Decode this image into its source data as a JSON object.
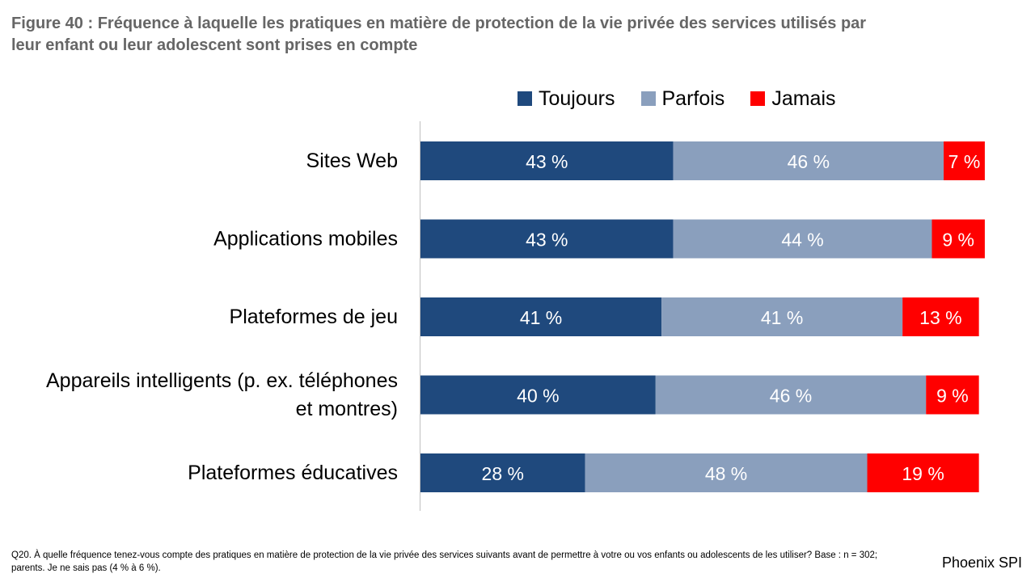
{
  "title": {
    "line1": "Figure 40 : Fréquence à laquelle les pratiques en matière de protection de la vie privée des services utilisés par",
    "line2": "leur enfant ou leur adolescent sont prises en compte"
  },
  "footnote": {
    "line1": "Q20. À quelle fréquence tenez-vous compte des pratiques en matière de protection de la vie privée des services suivants avant de permettre à votre ou vos enfants ou adolescents de les utiliser? Base : n = 302;",
    "line2": "parents. Je ne sais pas (4 % à 6 %)."
  },
  "brand": "Phoenix SPI",
  "colors": {
    "toujours": "#1F497D",
    "parfois": "#8A9FBD",
    "jamais": "#FF0000",
    "axis": "#BFBFBF"
  },
  "chart_data": {
    "type": "bar",
    "orientation": "horizontal",
    "stacked": true,
    "title": "Figure 40 : Fréquence à laquelle les pratiques en matière de protection de la vie privée des services utilisés par leur enfant ou leur adolescent sont prises en compte",
    "legend_position": "top",
    "categories": [
      [
        "Sites Web"
      ],
      [
        "Applications mobiles"
      ],
      [
        "Plateformes de jeu"
      ],
      [
        "Appareils intelligents (p. ex. téléphones",
        "et montres)"
      ],
      [
        "Plateformes éducatives"
      ]
    ],
    "series": [
      {
        "name": "Toujours",
        "color_key": "toujours",
        "values": [
          43,
          43,
          41,
          40,
          28
        ],
        "labels": [
          "43 %",
          "43 %",
          "41 %",
          "40 %",
          "28 %"
        ]
      },
      {
        "name": "Parfois",
        "color_key": "parfois",
        "values": [
          46,
          44,
          41,
          46,
          48
        ],
        "labels": [
          "46 %",
          "44 %",
          "41 %",
          "46 %",
          "48 %"
        ]
      },
      {
        "name": "Jamais",
        "color_key": "jamais",
        "values": [
          7,
          9,
          13,
          9,
          19
        ],
        "labels": [
          "7 %",
          "9 %",
          "13 %",
          "9 %",
          "19 %"
        ]
      }
    ],
    "xlim": [
      0,
      100
    ],
    "grid": false
  }
}
